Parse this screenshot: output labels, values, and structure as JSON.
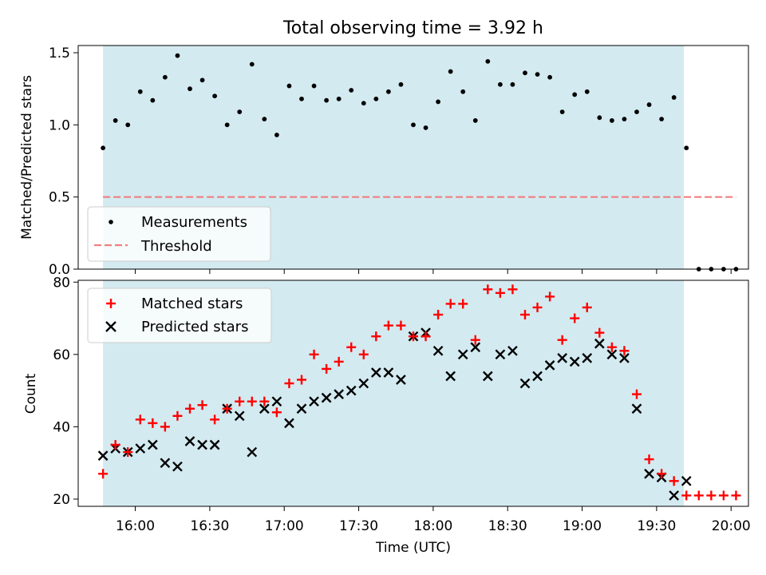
{
  "chart_data": [
    {
      "type": "scatter",
      "title": "Total observing time = 3.92 h",
      "ylabel": "Matched/Predicted stars",
      "xlabel": "",
      "ylim": [
        0,
        1.55
      ],
      "yticks": [
        "0.0",
        "0.5",
        "1.0",
        "1.5"
      ],
      "observing_window": [
        "15:47",
        "19:41"
      ],
      "series": [
        {
          "name": "Measurements",
          "marker": "dot",
          "color": "#000000",
          "points": [
            [
              "15:47",
              0.84
            ],
            [
              "15:52",
              1.03
            ],
            [
              "15:57",
              1.0
            ],
            [
              "16:02",
              1.23
            ],
            [
              "16:07",
              1.17
            ],
            [
              "16:12",
              1.33
            ],
            [
              "16:17",
              1.48
            ],
            [
              "16:22",
              1.25
            ],
            [
              "16:27",
              1.31
            ],
            [
              "16:32",
              1.2
            ],
            [
              "16:37",
              1.0
            ],
            [
              "16:42",
              1.09
            ],
            [
              "16:47",
              1.42
            ],
            [
              "16:52",
              1.04
            ],
            [
              "16:57",
              0.93
            ],
            [
              "17:02",
              1.27
            ],
            [
              "17:07",
              1.18
            ],
            [
              "17:12",
              1.27
            ],
            [
              "17:17",
              1.17
            ],
            [
              "17:22",
              1.18
            ],
            [
              "17:27",
              1.24
            ],
            [
              "17:32",
              1.15
            ],
            [
              "17:37",
              1.18
            ],
            [
              "17:42",
              1.23
            ],
            [
              "17:47",
              1.28
            ],
            [
              "17:52",
              1.0
            ],
            [
              "17:57",
              0.98
            ],
            [
              "18:02",
              1.16
            ],
            [
              "18:07",
              1.37
            ],
            [
              "18:12",
              1.23
            ],
            [
              "18:17",
              1.03
            ],
            [
              "18:22",
              1.44
            ],
            [
              "18:27",
              1.28
            ],
            [
              "18:32",
              1.28
            ],
            [
              "18:37",
              1.36
            ],
            [
              "18:42",
              1.35
            ],
            [
              "18:47",
              1.33
            ],
            [
              "18:52",
              1.09
            ],
            [
              "18:57",
              1.21
            ],
            [
              "19:02",
              1.23
            ],
            [
              "19:07",
              1.05
            ],
            [
              "19:12",
              1.03
            ],
            [
              "19:17",
              1.04
            ],
            [
              "19:22",
              1.09
            ],
            [
              "19:27",
              1.14
            ],
            [
              "19:32",
              1.04
            ],
            [
              "19:37",
              1.19
            ],
            [
              "19:42",
              0.84
            ],
            [
              "19:47",
              0.0
            ],
            [
              "19:52",
              0.0
            ],
            [
              "19:57",
              0.0
            ],
            [
              "20:02",
              0.0
            ]
          ]
        },
        {
          "name": "Threshold",
          "marker": "dashed-line",
          "color": "#f08080",
          "points": [
            [
              "15:47",
              0.5
            ],
            [
              "20:02",
              0.5
            ]
          ]
        }
      ],
      "legend_position": "lower-left",
      "grid": false
    },
    {
      "type": "scatter",
      "title": "",
      "xlabel": "Time (UTC)",
      "ylabel": "Count",
      "ylim": [
        18,
        80.5
      ],
      "yticks": [
        "20",
        "40",
        "60",
        "80"
      ],
      "xlim": [
        "15:37",
        "20:07"
      ],
      "xticks": [
        "16:00",
        "16:30",
        "17:00",
        "17:30",
        "18:00",
        "18:30",
        "19:00",
        "19:30",
        "20:00"
      ],
      "observing_window": [
        "15:47",
        "19:41"
      ],
      "series": [
        {
          "name": "Matched stars",
          "marker": "plus",
          "color": "#ff0000",
          "points": [
            [
              "15:47",
              27
            ],
            [
              "15:52",
              35
            ],
            [
              "15:57",
              33
            ],
            [
              "16:02",
              42
            ],
            [
              "16:07",
              41
            ],
            [
              "16:12",
              40
            ],
            [
              "16:17",
              43
            ],
            [
              "16:22",
              45
            ],
            [
              "16:27",
              46
            ],
            [
              "16:32",
              42
            ],
            [
              "16:37",
              45
            ],
            [
              "16:42",
              47
            ],
            [
              "16:47",
              47
            ],
            [
              "16:52",
              47
            ],
            [
              "16:57",
              44
            ],
            [
              "17:02",
              52
            ],
            [
              "17:07",
              53
            ],
            [
              "17:12",
              60
            ],
            [
              "17:17",
              56
            ],
            [
              "17:22",
              58
            ],
            [
              "17:27",
              62
            ],
            [
              "17:32",
              60
            ],
            [
              "17:37",
              65
            ],
            [
              "17:42",
              68
            ],
            [
              "17:47",
              68
            ],
            [
              "17:52",
              65
            ],
            [
              "17:57",
              65
            ],
            [
              "18:02",
              71
            ],
            [
              "18:07",
              74
            ],
            [
              "18:12",
              74
            ],
            [
              "18:17",
              64
            ],
            [
              "18:22",
              78
            ],
            [
              "18:27",
              77
            ],
            [
              "18:32",
              78
            ],
            [
              "18:37",
              71
            ],
            [
              "18:42",
              73
            ],
            [
              "18:47",
              76
            ],
            [
              "18:52",
              64
            ],
            [
              "18:57",
              70
            ],
            [
              "19:02",
              73
            ],
            [
              "19:07",
              66
            ],
            [
              "19:12",
              62
            ],
            [
              "19:17",
              61
            ],
            [
              "19:22",
              49
            ],
            [
              "19:27",
              31
            ],
            [
              "19:32",
              27
            ],
            [
              "19:37",
              25
            ],
            [
              "19:42",
              21
            ],
            [
              "19:47",
              21
            ],
            [
              "19:52",
              21
            ],
            [
              "19:57",
              21
            ],
            [
              "20:02",
              21
            ]
          ]
        },
        {
          "name": "Predicted stars",
          "marker": "x",
          "color": "#000000",
          "points": [
            [
              "15:47",
              32
            ],
            [
              "15:52",
              34
            ],
            [
              "15:57",
              33
            ],
            [
              "16:02",
              34
            ],
            [
              "16:07",
              35
            ],
            [
              "16:12",
              30
            ],
            [
              "16:17",
              29
            ],
            [
              "16:22",
              36
            ],
            [
              "16:27",
              35
            ],
            [
              "16:32",
              35
            ],
            [
              "16:37",
              45
            ],
            [
              "16:42",
              43
            ],
            [
              "16:47",
              33
            ],
            [
              "16:52",
              45
            ],
            [
              "16:57",
              47
            ],
            [
              "17:02",
              41
            ],
            [
              "17:07",
              45
            ],
            [
              "17:12",
              47
            ],
            [
              "17:17",
              48
            ],
            [
              "17:22",
              49
            ],
            [
              "17:27",
              50
            ],
            [
              "17:32",
              52
            ],
            [
              "17:37",
              55
            ],
            [
              "17:42",
              55
            ],
            [
              "17:47",
              53
            ],
            [
              "17:52",
              65
            ],
            [
              "17:57",
              66
            ],
            [
              "18:02",
              61
            ],
            [
              "18:07",
              54
            ],
            [
              "18:12",
              60
            ],
            [
              "18:17",
              62
            ],
            [
              "18:22",
              54
            ],
            [
              "18:27",
              60
            ],
            [
              "18:32",
              61
            ],
            [
              "18:37",
              52
            ],
            [
              "18:42",
              54
            ],
            [
              "18:47",
              57
            ],
            [
              "18:52",
              59
            ],
            [
              "18:57",
              58
            ],
            [
              "19:02",
              59
            ],
            [
              "19:07",
              63
            ],
            [
              "19:12",
              60
            ],
            [
              "19:17",
              59
            ],
            [
              "19:22",
              45
            ],
            [
              "19:27",
              27
            ],
            [
              "19:32",
              26
            ],
            [
              "19:37",
              21
            ],
            [
              "19:42",
              25
            ]
          ]
        }
      ],
      "legend_position": "upper-left",
      "grid": false
    }
  ],
  "colors": {
    "shade": "#d3eaf0",
    "matched": "#ff0000",
    "predicted": "#000000",
    "threshold": "#f08080"
  }
}
